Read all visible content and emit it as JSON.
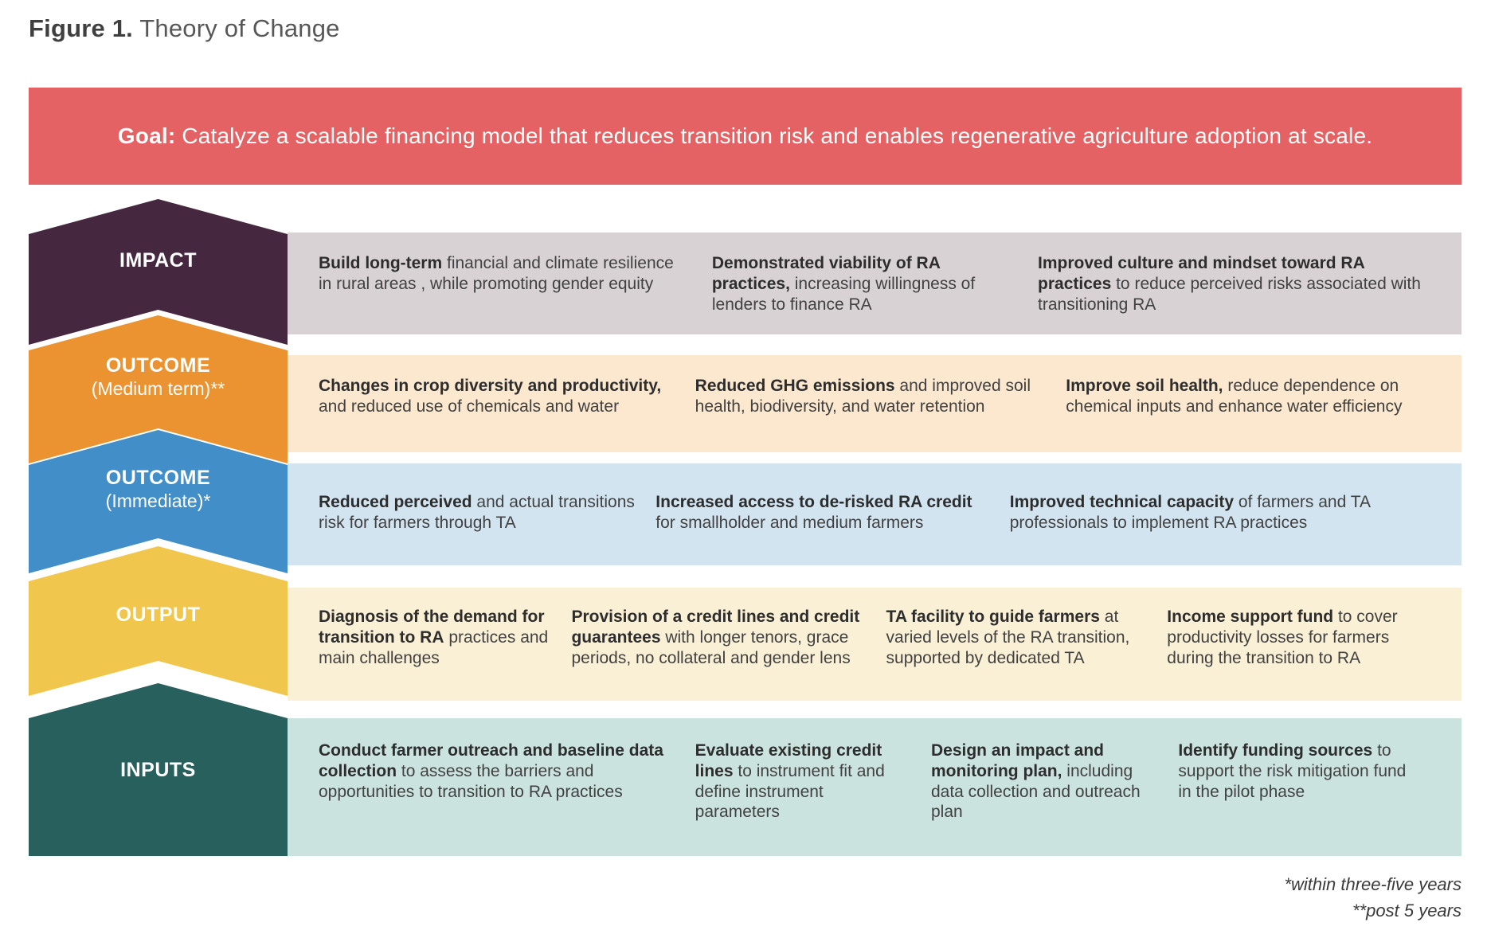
{
  "title": {
    "bold": "Figure 1.",
    "rest": " Theory of Change"
  },
  "goal": {
    "bold": "Goal:",
    "rest": " Catalyze a scalable financing model that reduces transition risk and enables regenerative agriculture adoption at scale."
  },
  "colors": {
    "goal_banner": "#E46263",
    "impact_chevron": "#45283F",
    "impact_band": "#D8D2D5",
    "outcome_medium_chevron": "#EA9330",
    "outcome_medium_band": "#FBE8CE",
    "outcome_immediate_chevron": "#418EC8",
    "outcome_immediate_band": "#D3E4F1",
    "output_chevron": "#F1C64D",
    "output_band": "#FAF0D6",
    "inputs_chevron": "#27605C",
    "inputs_band": "#CBE3DF"
  },
  "rows": [
    {
      "label": "IMPACT",
      "cells": [
        {
          "bold": "Build long-term",
          "rest": " financial and climate resilience in rural areas , while promoting gender equity"
        },
        {
          "bold": "Demonstrated viability of RA practices,",
          "rest": " increasing willingness of lenders to finance RA"
        },
        {
          "bold": "Improved culture and mindset toward RA practices",
          "rest": " to reduce perceived risks associated with transitioning RA"
        }
      ]
    },
    {
      "label": "OUTCOME",
      "sublabel": "(Medium term)**",
      "cells": [
        {
          "bold": "Changes in crop diversity and productivity,",
          "rest": " and reduced use of chemicals and water"
        },
        {
          "bold": "Reduced GHG emissions",
          "rest": " and improved soil health, biodiversity, and water retention"
        },
        {
          "bold": "Improve soil health,",
          "rest": " reduce dependence on chemical inputs and enhance water efficiency"
        }
      ]
    },
    {
      "label": "OUTCOME",
      "sublabel": "(Immediate)*",
      "cells": [
        {
          "bold": "Reduced perceived",
          "rest": " and actual transitions risk for farmers through TA"
        },
        {
          "bold": "Increased access to de-risked RA credit",
          "rest": " for smallholder and medium farmers"
        },
        {
          "bold": "Improved  technical capacity",
          "rest": " of farmers and TA professionals to implement RA practices"
        }
      ]
    },
    {
      "label": "OUTPUT",
      "cells": [
        {
          "bold": "Diagnosis of the demand for transition to RA",
          "rest": " practices and main challenges"
        },
        {
          "bold": "Provision of a credit lines and credit guarantees",
          "rest": " with longer tenors, grace periods, no collateral and gender lens"
        },
        {
          "bold": "TA facility to  guide  farmers",
          "rest": " at varied levels of the RA transition, supported by dedicated TA"
        },
        {
          "bold": "Income support fund",
          "rest": " to cover productivity losses for farmers during the transition to RA"
        }
      ]
    },
    {
      "label": "INPUTS",
      "cells": [
        {
          "bold": "Conduct farmer outreach and  baseline data collection",
          "rest": " to assess the barriers and opportunities to transition to RA practices"
        },
        {
          "bold": "Evaluate existing credit lines",
          "rest": " to instrument fit and define instrument parameters"
        },
        {
          "bold": "Design an impact and monitoring plan,",
          "rest": " including data collection and outreach plan"
        },
        {
          "bold": "Identify funding sources",
          "rest": " to support the risk mitigation fund in the pilot phase"
        }
      ]
    }
  ],
  "footnotes": {
    "line1": "*within three-five years",
    "line2": "**post 5 years"
  }
}
